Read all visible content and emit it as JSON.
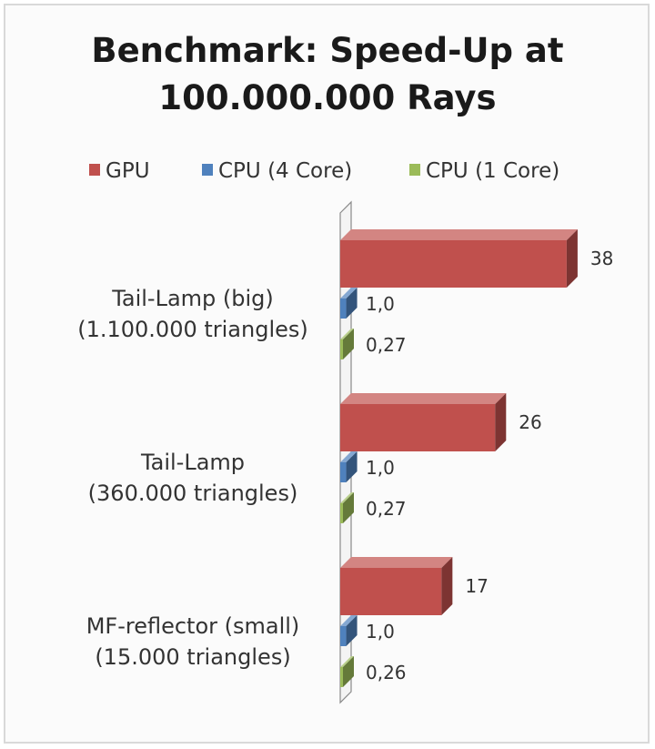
{
  "chart_data": {
    "type": "bar",
    "orientation": "horizontal",
    "style": "3d",
    "title_lines": [
      "Benchmark: Speed-Up at",
      "100.000.000 Rays"
    ],
    "legend_position": "top",
    "grid": false,
    "xlim": [
      0,
      40
    ],
    "categories": [
      {
        "lines": [
          "Tail-Lamp (big)",
          "(1.100.000 triangles)"
        ]
      },
      {
        "lines": [
          "Tail-Lamp",
          "(360.000 triangles)"
        ]
      },
      {
        "lines": [
          "MF-reflector (small)",
          "(15.000 triangles)"
        ]
      }
    ],
    "series": [
      {
        "name": "GPU",
        "color": "#c0504d",
        "values": [
          38,
          26,
          17
        ],
        "labels": [
          "38",
          "26",
          "17"
        ]
      },
      {
        "name": "CPU (4 Core)",
        "color": "#4f81bd",
        "values": [
          1.0,
          1.0,
          1.0
        ],
        "labels": [
          "1,0",
          "1,0",
          "1,0"
        ]
      },
      {
        "name": "CPU (1 Core)",
        "color": "#9bbb59",
        "values": [
          0.27,
          0.27,
          0.26
        ],
        "labels": [
          "0,27",
          "0,27",
          "0,26"
        ]
      }
    ]
  }
}
